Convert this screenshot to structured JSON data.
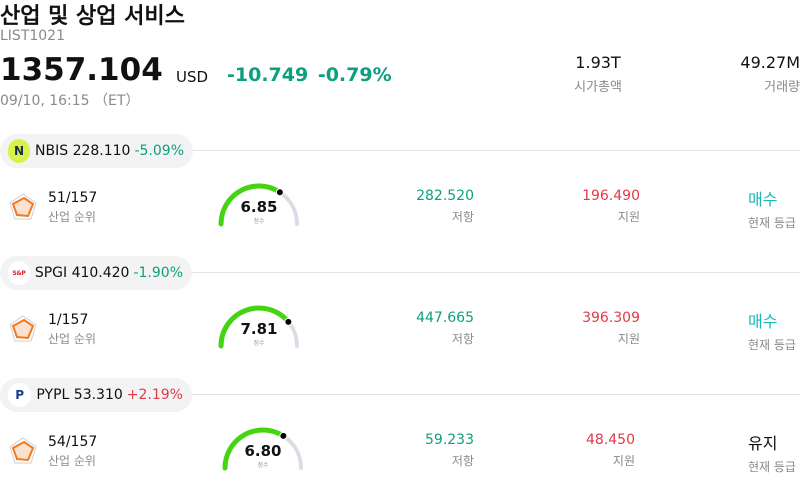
{
  "header": {
    "title": "산업 및 상업 서비스",
    "code": "LIST1021",
    "price": "1357.104",
    "currency": "USD",
    "change": "-10.749 -0.79%",
    "timestamp": "09/10, 16:15 （ET）",
    "market_cap": {
      "value": "1.93T",
      "label": "시가총액"
    },
    "volume": {
      "value": "49.27M",
      "label": "거래량"
    }
  },
  "stocks": [
    {
      "ticker": "NBIS",
      "price": "228.110",
      "change": "-5.09%",
      "direction": "neg",
      "logo_text": "N",
      "logo_bg": "#d7f24a",
      "logo_color": "#1c2b4a",
      "rank": "51/157",
      "rank_label": "산업 순위",
      "score": "6.85",
      "score_value": 6.85,
      "score_label": "점수",
      "resistance": "282.520",
      "resistance_label": "저항",
      "support": "196.490",
      "support_label": "지원",
      "rating": "매수",
      "rating_type": "buy",
      "rating_label": "현재 등급"
    },
    {
      "ticker": "SPGI",
      "price": "410.420",
      "change": "-1.90%",
      "direction": "neg",
      "logo_text": "S&P",
      "logo_bg": "#ffffff",
      "logo_color": "#d6202f",
      "rank": "1/157",
      "rank_label": "산업 순위",
      "score": "7.81",
      "score_value": 7.81,
      "score_label": "점수",
      "resistance": "447.665",
      "resistance_label": "저항",
      "support": "396.309",
      "support_label": "지원",
      "rating": "매수",
      "rating_type": "buy",
      "rating_label": "현재 등급"
    },
    {
      "ticker": "PYPL",
      "price": "53.310",
      "change": "+2.19%",
      "direction": "pos",
      "logo_text": "P",
      "logo_bg": "#ffffff",
      "logo_color": "#1b3f8f",
      "rank": "54/157",
      "rank_label": "산업 순위",
      "score": "6.80",
      "score_value": 6.8,
      "score_label": "점수",
      "resistance": "59.233",
      "resistance_label": "저항",
      "support": "48.450",
      "support_label": "지원",
      "rating": "유지",
      "rating_type": "hold",
      "rating_label": "현재 등급"
    }
  ],
  "colors": {
    "positive": "#e03a4a",
    "negative": "#0e9f7e",
    "gauge_fill": "#44d411",
    "gauge_track": "#dcdce6",
    "buy": "#1ab8b8"
  },
  "icons": {
    "rank": "radar-chart-icon"
  }
}
